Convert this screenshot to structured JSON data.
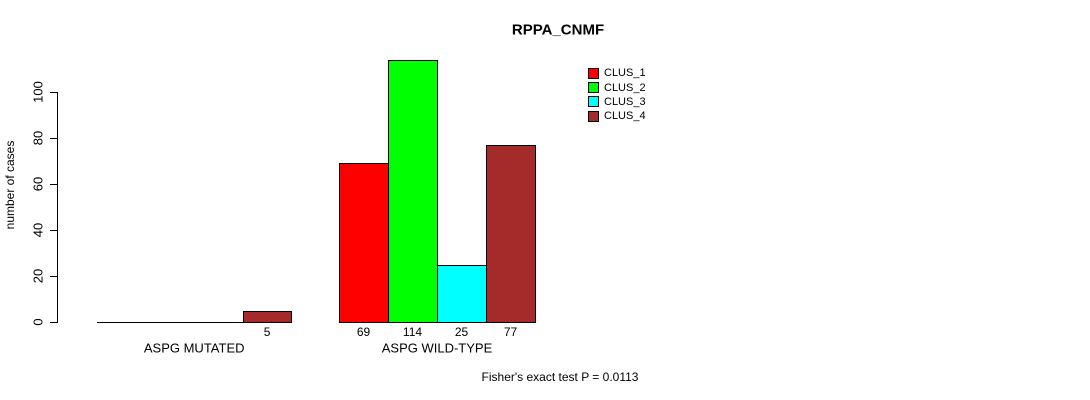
{
  "chart_data": {
    "type": "bar",
    "title": "RPPA_CNMF",
    "ylabel": "number of cases",
    "xlabel": "",
    "categories": [
      "ASPG MUTATED",
      "ASPG WILD-TYPE"
    ],
    "series": [
      {
        "name": "CLUS_1",
        "color": "#ff0000",
        "values": [
          0,
          69
        ]
      },
      {
        "name": "CLUS_2",
        "color": "#00ff00",
        "values": [
          0,
          114
        ]
      },
      {
        "name": "CLUS_3",
        "color": "#00ffff",
        "values": [
          0,
          25
        ]
      },
      {
        "name": "CLUS_4",
        "color": "#a52a2a",
        "values": [
          5,
          77
        ]
      }
    ],
    "yticks": [
      0,
      20,
      40,
      60,
      80,
      100
    ],
    "ylim": [
      0,
      100
    ],
    "grid": false,
    "legend_position": "top-right",
    "legend_entries": [
      "CLUS_1",
      "CLUS_2",
      "CLUS_3",
      "CLUS_4"
    ],
    "bar_value_labels": {
      "ASPG MUTATED": [
        null,
        null,
        null,
        5
      ],
      "ASPG WILD-TYPE": [
        69,
        114,
        25,
        77
      ]
    },
    "annotation": "Fisher's exact test P = 0.0113"
  },
  "colors": {
    "background": "#ffffff",
    "axis": "#000000",
    "text": "#000000"
  }
}
